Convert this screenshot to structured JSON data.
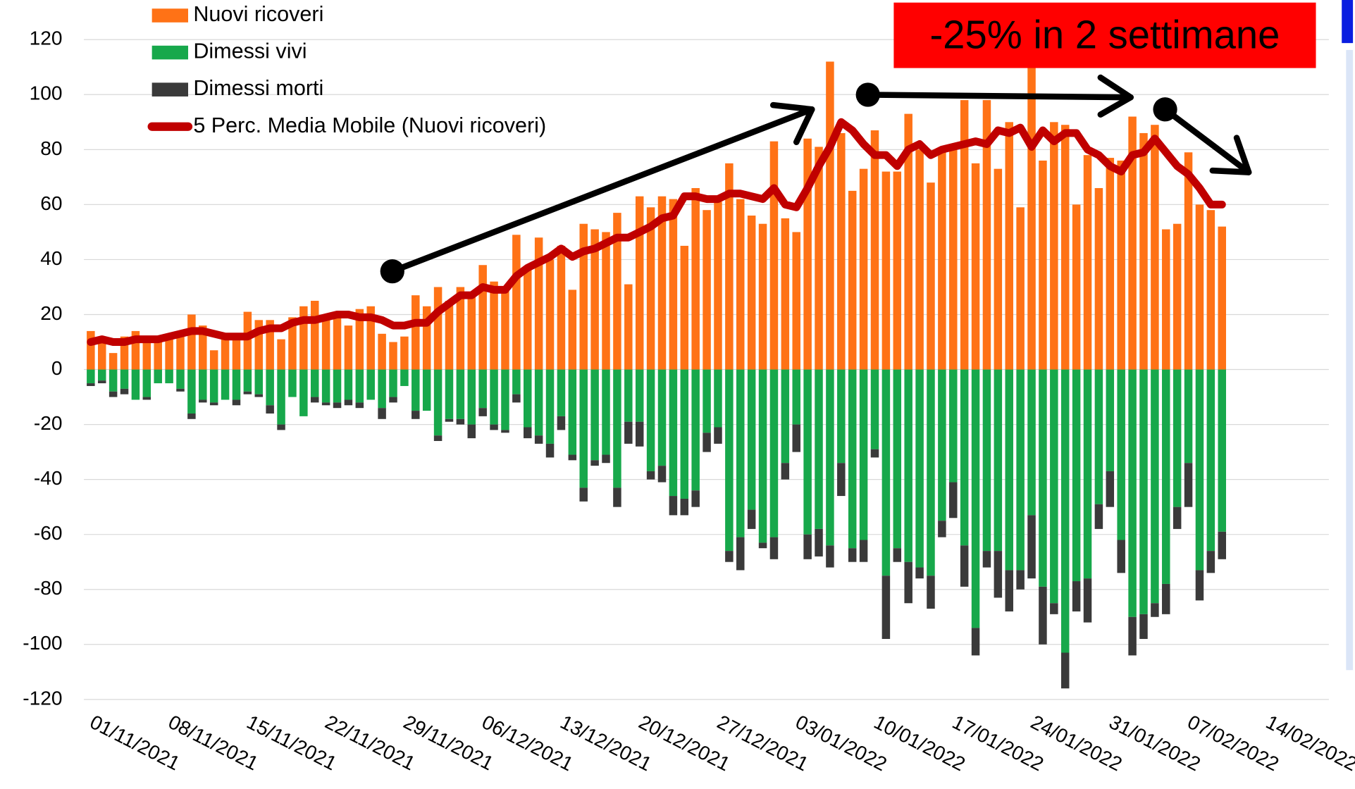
{
  "chart_data": {
    "type": "bar",
    "annotation": "-25% in 2 settimane",
    "categories": [
      "01/11/2021",
      null,
      null,
      null,
      null,
      null,
      null,
      "08/11/2021",
      null,
      null,
      null,
      null,
      null,
      null,
      "15/11/2021",
      null,
      null,
      null,
      null,
      null,
      null,
      "22/11/2021",
      null,
      null,
      null,
      null,
      null,
      null,
      "29/11/2021",
      null,
      null,
      null,
      null,
      null,
      null,
      "06/12/2021",
      null,
      null,
      null,
      null,
      null,
      null,
      "13/12/2021",
      null,
      null,
      null,
      null,
      null,
      null,
      "20/12/2021",
      null,
      null,
      null,
      null,
      null,
      null,
      "27/12/2021",
      null,
      null,
      null,
      null,
      null,
      null,
      "03/01/2022",
      null,
      null,
      null,
      null,
      null,
      null,
      "10/01/2022",
      null,
      null,
      null,
      null,
      null,
      null,
      "17/01/2022",
      null,
      null,
      null,
      null,
      null,
      null,
      "24/01/2022",
      null,
      null,
      null,
      null,
      null,
      null,
      "31/01/2022",
      null,
      null,
      null,
      null,
      null,
      null,
      "07/02/2022",
      null,
      null,
      null,
      null,
      null,
      null,
      "14/02/2022"
    ],
    "series": [
      {
        "name": "Nuovi ricoveri",
        "color": "#ff7216",
        "kind": "bar",
        "values": [
          14,
          12,
          6,
          12,
          14,
          11,
          10,
          13,
          13,
          20,
          16,
          7,
          11,
          11,
          21,
          18,
          18,
          11,
          19,
          23,
          25,
          19,
          21,
          16,
          22,
          23,
          13,
          10,
          12,
          27,
          23,
          30,
          25,
          30,
          28,
          38,
          32,
          30,
          49,
          37,
          48,
          40,
          45,
          29,
          53,
          51,
          50,
          57,
          31,
          63,
          59,
          63,
          62,
          45,
          66,
          58,
          61,
          75,
          62,
          56,
          53,
          83,
          55,
          50,
          84,
          81,
          112,
          86,
          65,
          73,
          87,
          72,
          72,
          93,
          80,
          68,
          80,
          80,
          98,
          75,
          98,
          73,
          90,
          59,
          112,
          76,
          90,
          89,
          60,
          78,
          66,
          77,
          76,
          92,
          86,
          89,
          51,
          53,
          79,
          60,
          58,
          52,
          null,
          null,
          null,
          null
        ]
      },
      {
        "name": "Dimessi vivi",
        "color": "#17a84b",
        "kind": "bar",
        "values": [
          -5,
          -4,
          -8,
          -7,
          -11,
          -10,
          -5,
          -5,
          -7,
          -16,
          -11,
          -12,
          -11,
          -11,
          -8,
          -9,
          -13,
          -20,
          -10,
          -17,
          -10,
          -12,
          -12,
          -11,
          -12,
          -11,
          -14,
          -10,
          -6,
          -15,
          -15,
          -24,
          -18,
          -18,
          -20,
          -14,
          -20,
          -22,
          -9,
          -21,
          -24,
          -27,
          -17,
          -31,
          -43,
          -33,
          -31,
          -43,
          -19,
          -19,
          -37,
          -35,
          -46,
          -47,
          -44,
          -23,
          -21,
          -66,
          -61,
          -51,
          -63,
          -61,
          -34,
          -20,
          -60,
          -58,
          -64,
          -34,
          -65,
          -62,
          -29,
          -75,
          -65,
          -70,
          -72,
          -75,
          -55,
          -41,
          -64,
          -94,
          -66,
          -66,
          -73,
          -73,
          -53,
          -79,
          -85,
          -103,
          -77,
          -76,
          -49,
          -37,
          -62,
          -90,
          -89,
          -85,
          -78,
          -50,
          -34,
          -73,
          -66,
          -59,
          null,
          null,
          null,
          null
        ]
      },
      {
        "name": "Dimessi morti",
        "color": "#3a3a3a",
        "kind": "bar",
        "values": [
          -1,
          -1,
          -2,
          -2,
          0,
          -1,
          0,
          0,
          -1,
          -2,
          -1,
          -1,
          0,
          -2,
          -1,
          -1,
          -3,
          -2,
          0,
          0,
          -2,
          -1,
          -2,
          -2,
          -2,
          0,
          -4,
          -2,
          0,
          -3,
          0,
          -2,
          -1,
          -2,
          -5,
          -3,
          -2,
          -1,
          -3,
          -4,
          -3,
          -5,
          -5,
          -2,
          -5,
          -2,
          -3,
          -7,
          -8,
          -9,
          -3,
          -6,
          -7,
          -6,
          -6,
          -7,
          -6,
          -4,
          -12,
          -7,
          -2,
          -8,
          -6,
          -10,
          -9,
          -10,
          -8,
          -12,
          -5,
          -8,
          -3,
          -23,
          -5,
          -15,
          -4,
          -12,
          -6,
          -13,
          -15,
          -10,
          -6,
          -17,
          -15,
          -7,
          -23,
          -21,
          -4,
          -13,
          -11,
          -16,
          -9,
          -13,
          -12,
          -14,
          -9,
          -5,
          -11,
          -8,
          -16,
          -11,
          -8,
          -10,
          null,
          null,
          null,
          null
        ]
      },
      {
        "name": "5 Perc. Media Mobile (Nuovi ricoveri)",
        "color": "#c00000",
        "kind": "line",
        "values": [
          10,
          11,
          10,
          10,
          11,
          11,
          11,
          12,
          13,
          14,
          14,
          13,
          12,
          12,
          12,
          14,
          15,
          15,
          17,
          18,
          18,
          19,
          20,
          20,
          19,
          19,
          18,
          16,
          16,
          17,
          17,
          21,
          24,
          27,
          27,
          30,
          29,
          29,
          34,
          37,
          39,
          41,
          44,
          41,
          43,
          44,
          46,
          48,
          48,
          50,
          52,
          55,
          56,
          63,
          63,
          62,
          62,
          64,
          64,
          63,
          62,
          66,
          60,
          59,
          66,
          74,
          81,
          90,
          87,
          82,
          78,
          78,
          74,
          80,
          82,
          78,
          80,
          81,
          82,
          83,
          82,
          87,
          86,
          88,
          81,
          87,
          83,
          86,
          86,
          80,
          78,
          74,
          72,
          78,
          79,
          84,
          79,
          74,
          71,
          66,
          60,
          60,
          null,
          null,
          null,
          null
        ]
      }
    ],
    "ylim": [
      -120,
      120
    ],
    "yticks": [
      -120,
      -100,
      -80,
      -60,
      -40,
      -20,
      0,
      20,
      40,
      60,
      80,
      100,
      120
    ],
    "grid": true
  }
}
